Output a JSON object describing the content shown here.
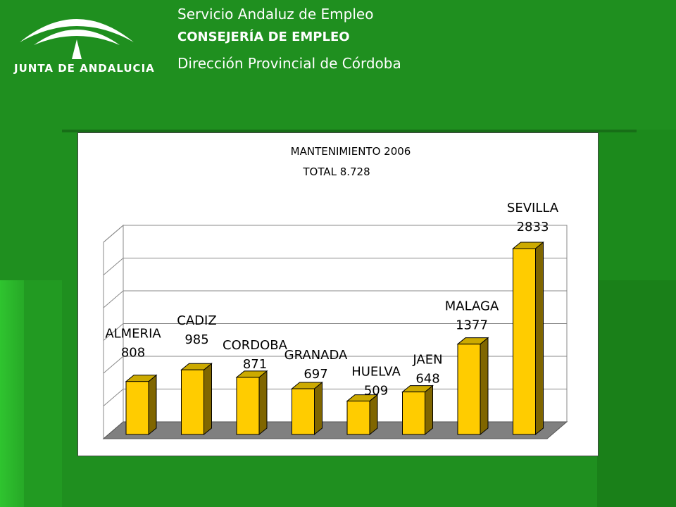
{
  "header": {
    "org": "Servicio Andaluz de Empleo",
    "department": "CONSEJERÍA DE EMPLEO",
    "office": "Dirección Provincial de Córdoba",
    "logo_text": "JUNTA DE ANDALUCIA"
  },
  "chart_data": {
    "type": "bar",
    "title": "MANTENIMIENTO 2006",
    "subtitle": "TOTAL 8.728",
    "categories": [
      "ALMERIA",
      "CADIZ",
      "CORDOBA",
      "GRANADA",
      "HUELVA",
      "JAEN",
      "MALAGA",
      "SEVILLA"
    ],
    "values": [
      808,
      985,
      871,
      697,
      509,
      648,
      1377,
      2833
    ],
    "ylim": [
      0,
      3000
    ],
    "grid": true,
    "bar_color": "#ffcc00"
  }
}
